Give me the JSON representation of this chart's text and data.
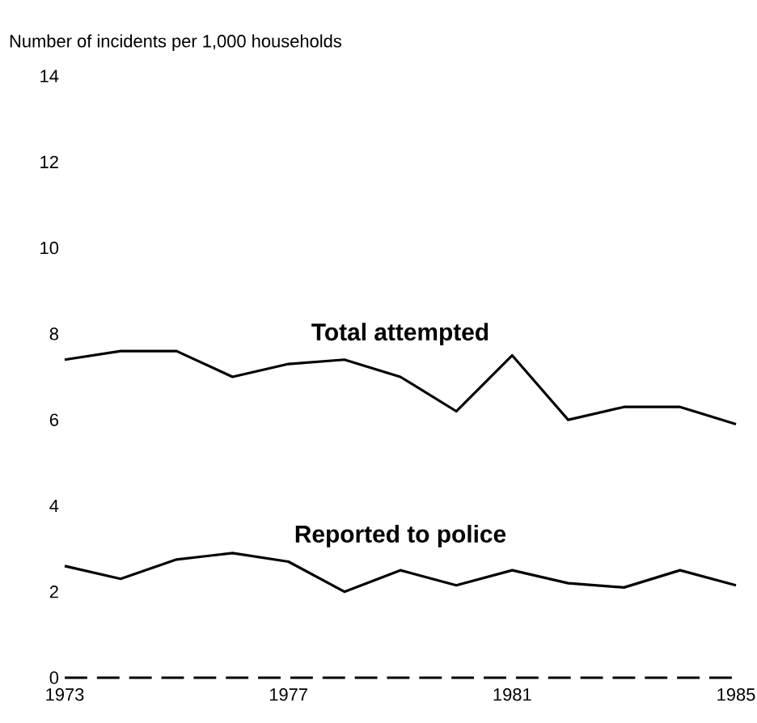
{
  "chart_data": {
    "type": "line",
    "ylabel": "Number of incidents per 1,000 households",
    "x": [
      1973,
      1974,
      1975,
      1976,
      1977,
      1978,
      1979,
      1980,
      1981,
      1982,
      1983,
      1984,
      1985
    ],
    "series": [
      {
        "name": "Total attempted",
        "color": "#000000",
        "values": [
          7.4,
          7.6,
          7.6,
          7.0,
          7.3,
          7.4,
          7.0,
          6.2,
          7.5,
          6.0,
          6.3,
          6.3,
          5.9
        ]
      },
      {
        "name": "Reported to police",
        "color": "#000000",
        "values": [
          2.6,
          2.3,
          2.75,
          2.9,
          2.7,
          2.0,
          2.5,
          2.15,
          2.5,
          2.2,
          2.1,
          2.5,
          2.15
        ]
      }
    ],
    "xlim": [
      1973,
      1985
    ],
    "xticks": [
      1973,
      1977,
      1981,
      1985
    ],
    "ylim": [
      0,
      14
    ],
    "yticks": [
      0,
      2,
      4,
      6,
      8,
      10,
      12,
      14
    ],
    "ref_lines": [
      {
        "axis": "y",
        "value": 0,
        "line_style": "dashed"
      }
    ],
    "grid": false,
    "marker": "none",
    "line_style": "solid"
  }
}
